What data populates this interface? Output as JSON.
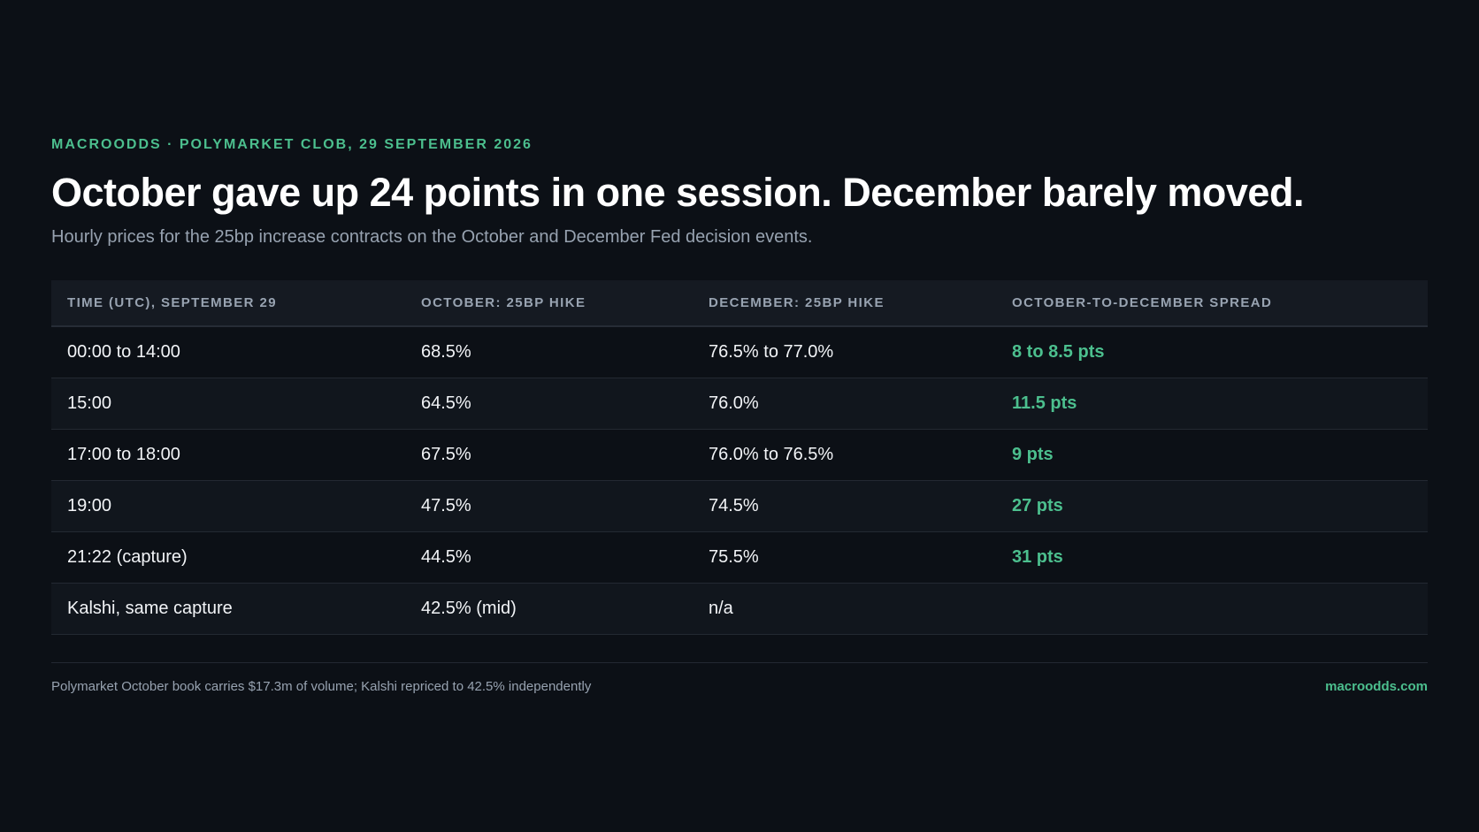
{
  "header": {
    "kicker": "MACROODDS · POLYMARKET CLOB, 29 SEPTEMBER 2026",
    "title": "October gave up 24 points in one session. December barely moved.",
    "subtitle": "Hourly prices for the 25bp increase contracts on the October and December Fed decision events."
  },
  "chart_data": {
    "type": "table",
    "columns": [
      "TIME (UTC), SEPTEMBER 29",
      "OCTOBER: 25BP HIKE",
      "DECEMBER: 25BP HIKE",
      "OCTOBER-TO-DECEMBER SPREAD"
    ],
    "rows": [
      [
        "00:00 to 14:00",
        "68.5%",
        "76.5% to 77.0%",
        "8 to 8.5 pts"
      ],
      [
        "15:00",
        "64.5%",
        "76.0%",
        "11.5 pts"
      ],
      [
        "17:00 to 18:00",
        "67.5%",
        "76.0% to 76.5%",
        "9 pts"
      ],
      [
        "19:00",
        "47.5%",
        "74.5%",
        "27 pts"
      ],
      [
        "21:22 (capture)",
        "44.5%",
        "75.5%",
        "31 pts"
      ],
      [
        "Kalshi, same capture",
        "42.5% (mid)",
        "n/a",
        ""
      ]
    ]
  },
  "footer": {
    "note": "Polymarket October book carries $17.3m of volume; Kalshi repriced to 42.5% independently",
    "site": "macroodds.com"
  },
  "colors": {
    "background": "#0c1016",
    "accent": "#4cbf8e",
    "header_row": "#151a22"
  }
}
